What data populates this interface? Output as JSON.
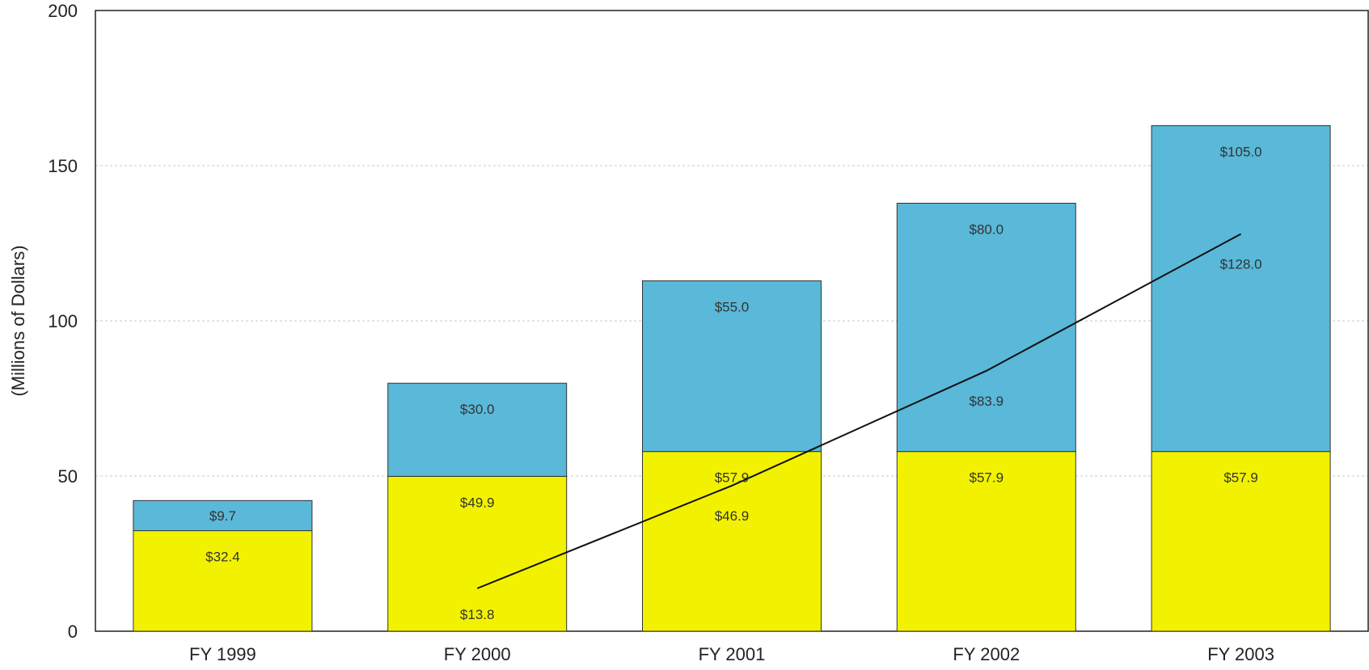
{
  "chart_data": {
    "type": "bar",
    "stacked": true,
    "title": "",
    "xlabel": "",
    "ylabel": "(Millions of Dollars)",
    "ylim": [
      0,
      200
    ],
    "yticks": [
      0,
      50,
      100,
      150,
      200
    ],
    "grid": true,
    "categories": [
      "FY 1999",
      "FY 2000",
      "FY 2001",
      "FY 2002",
      "FY 2003"
    ],
    "series": [
      {
        "values": [
          32.4,
          49.9,
          57.9,
          57.9,
          57.9
        ],
        "labels": [
          "$32.4",
          "$49.9",
          "$57.9",
          "$57.9",
          "$57.9"
        ],
        "color": "#f2f200"
      },
      {
        "values": [
          9.7,
          30.0,
          55.0,
          80.0,
          105.0
        ],
        "labels": [
          "$9.7",
          "$30.0",
          "$55.0",
          "$80.0",
          "$105.0"
        ],
        "color": "#5ab8d8"
      }
    ],
    "line_series": {
      "x": [
        "FY 2000",
        "FY 2001",
        "FY 2002",
        "FY 2003"
      ],
      "values": [
        13.8,
        46.9,
        83.9,
        128.0
      ],
      "labels": [
        "$13.8",
        "$46.9",
        "$83.9",
        "$128.0"
      ],
      "color": "#111111"
    }
  }
}
